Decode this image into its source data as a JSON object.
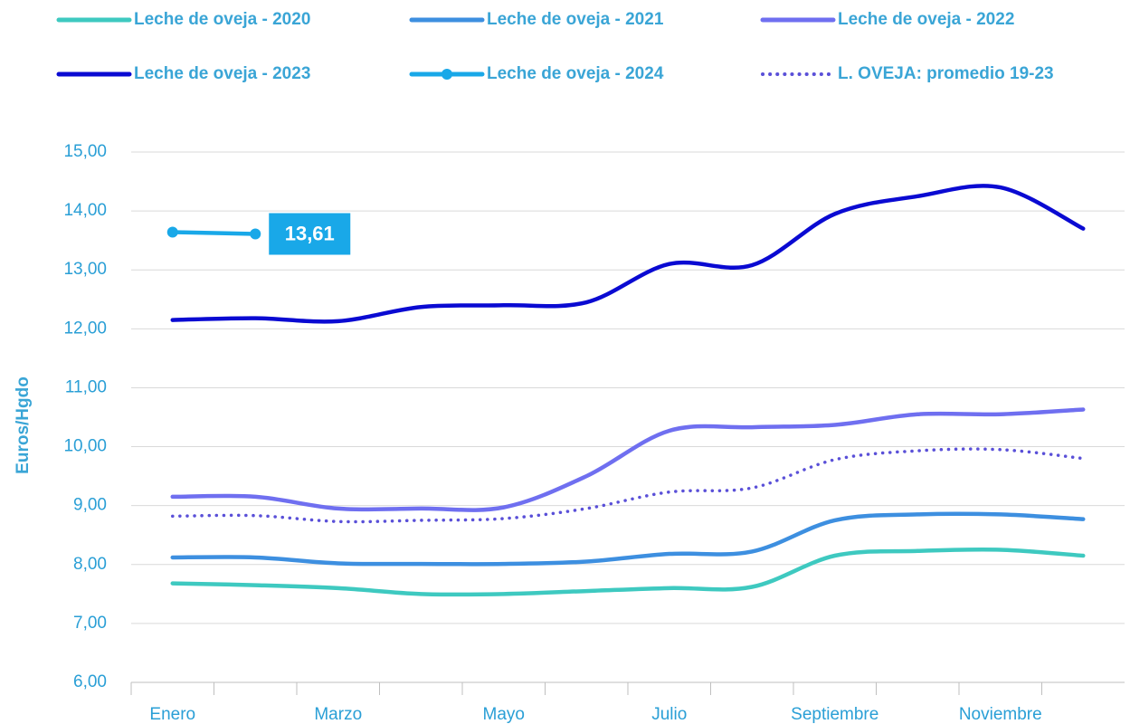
{
  "chart_data": {
    "type": "line",
    "y_label": "Euros/Hgdo",
    "categories": [
      "Enero",
      null,
      "Marzo",
      null,
      "Mayo",
      null,
      "Julio",
      null,
      "Septiembre",
      null,
      "Noviembre",
      null
    ],
    "ylim": [
      6,
      15
    ],
    "yticks": [
      {
        "value": 6,
        "label": "6,00"
      },
      {
        "value": 7,
        "label": "7,00"
      },
      {
        "value": 8,
        "label": "8,00"
      },
      {
        "value": 9,
        "label": "9,00"
      },
      {
        "value": 10,
        "label": "10,00"
      },
      {
        "value": 11,
        "label": "11,00"
      },
      {
        "value": 12,
        "label": "12,00"
      },
      {
        "value": 13,
        "label": "13,00"
      },
      {
        "value": 14,
        "label": "14,00"
      },
      {
        "value": 15,
        "label": "15,00"
      }
    ],
    "grid": true,
    "series": [
      {
        "name": "Leche de oveja - 2020",
        "color": "#3ec9c0",
        "values": [
          7.68,
          7.65,
          7.6,
          7.5,
          7.5,
          7.55,
          7.6,
          7.62,
          8.15,
          8.23,
          8.25,
          8.15
        ]
      },
      {
        "name": "Leche de oveja - 2021",
        "color": "#3d8fe0",
        "values": [
          8.12,
          8.12,
          8.02,
          8.01,
          8.01,
          8.05,
          8.18,
          8.22,
          8.75,
          8.85,
          8.85,
          8.77
        ]
      },
      {
        "name": "Leche de oveja - 2022",
        "color": "#6f6ff0",
        "values": [
          9.15,
          9.15,
          8.95,
          8.95,
          8.97,
          9.5,
          10.27,
          10.33,
          10.37,
          10.55,
          10.55,
          10.63
        ]
      },
      {
        "name": "Leche de oveja - 2023",
        "color": "#0a0ad2",
        "values": [
          12.15,
          12.18,
          12.13,
          12.37,
          12.4,
          12.45,
          13.1,
          13.08,
          13.95,
          14.25,
          14.4,
          13.7
        ]
      },
      {
        "name": "Leche de oveja - 2024",
        "color": "#19a8e8",
        "markers": true,
        "values": [
          13.64,
          13.61,
          null,
          null,
          null,
          null,
          null,
          null,
          null,
          null,
          null,
          null
        ],
        "value_labels": [
          null,
          "13,61",
          null,
          null,
          null,
          null,
          null,
          null,
          null,
          null,
          null,
          null
        ]
      },
      {
        "name": "L. OVEJA: promedio 19-23",
        "color": "#5a50d8",
        "dash": "dotted",
        "values": [
          8.82,
          8.83,
          8.73,
          8.75,
          8.78,
          8.95,
          9.23,
          9.3,
          9.78,
          9.93,
          9.95,
          9.8
        ]
      }
    ]
  }
}
